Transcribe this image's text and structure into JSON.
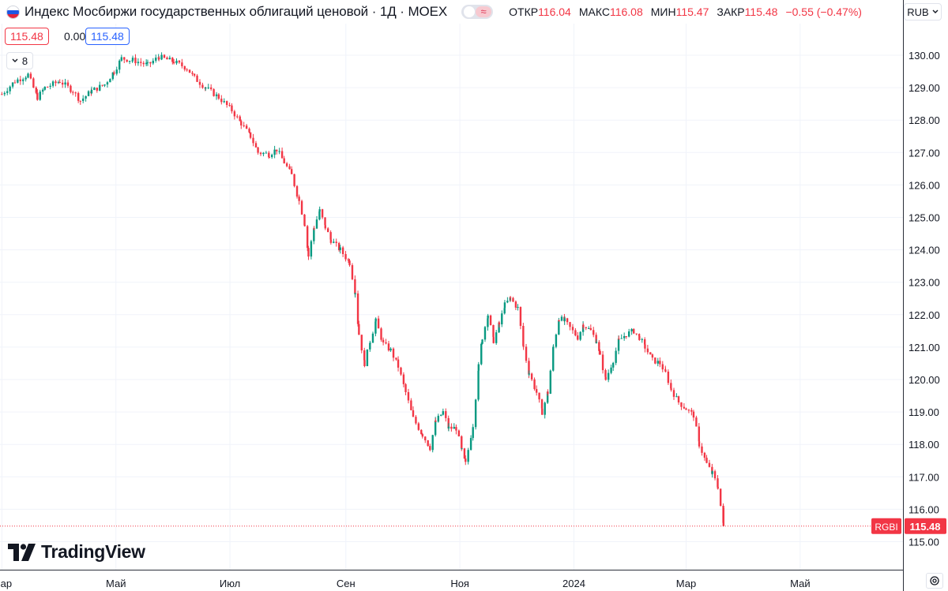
{
  "header": {
    "title": "Индекс Мосбиржи государственных облигаций ценовой · 1Д · MOEX",
    "ohlc": {
      "open_label": "ОТКР",
      "open": "116.04",
      "high_label": "МАКС",
      "high": "116.08",
      "low_label": "МИН",
      "low": "115.47",
      "close_label": "ЗАКР",
      "close": "115.48",
      "change": "−0.55 (−0.47%)"
    },
    "compare_toggle_glyph": "≈",
    "bid_price": "115.48",
    "spread": "0.00",
    "ask_price": "115.48",
    "indicators_count": "8",
    "currency": "RUB"
  },
  "brand": {
    "logo_text": "TradingView"
  },
  "colors": {
    "up": "#089981",
    "down": "#f23645",
    "grid": "#f0f3fa",
    "text": "#131722",
    "ask": "#2962ff"
  },
  "icons": [
    "russia-flag-icon",
    "compare-toggle-icon",
    "chevron-down-icon",
    "tradingview-logo-icon",
    "settings-icon"
  ],
  "chart_data": {
    "type": "candlestick",
    "symbol": "RGBI",
    "last_price": 115.48,
    "ylim": [
      114.5,
      130.3
    ],
    "y_ticks": [
      115,
      116,
      117,
      118,
      119,
      120,
      121,
      122,
      123,
      124,
      125,
      126,
      127,
      128,
      129,
      130
    ],
    "x_ticks": [
      {
        "label": "Мар",
        "date": "2023-03-01"
      },
      {
        "label": "Май",
        "date": "2023-05-01"
      },
      {
        "label": "Июл",
        "date": "2023-07-01"
      },
      {
        "label": "Сен",
        "date": "2023-09-01"
      },
      {
        "label": "Ноя",
        "date": "2023-11-01"
      },
      {
        "label": "2024",
        "date": "2024-01-01"
      },
      {
        "label": "Мар",
        "date": "2024-03-01"
      },
      {
        "label": "Май",
        "date": "2024-05-01"
      }
    ],
    "xlim": [
      "2023-02-28",
      "2024-06-25"
    ],
    "closes": [
      {
        "date": "2023-03-01",
        "close": 128.8
      },
      {
        "date": "2023-03-08",
        "close": 129.2
      },
      {
        "date": "2023-03-15",
        "close": 129.4
      },
      {
        "date": "2023-03-20",
        "close": 128.7
      },
      {
        "date": "2023-03-24",
        "close": 129.0
      },
      {
        "date": "2023-04-01",
        "close": 129.2
      },
      {
        "date": "2023-04-08",
        "close": 128.9
      },
      {
        "date": "2023-04-12",
        "close": 128.6
      },
      {
        "date": "2023-04-18",
        "close": 128.9
      },
      {
        "date": "2023-04-25",
        "close": 129.1
      },
      {
        "date": "2023-04-30",
        "close": 129.5
      },
      {
        "date": "2023-05-04",
        "close": 129.9
      },
      {
        "date": "2023-05-10",
        "close": 129.85
      },
      {
        "date": "2023-05-18",
        "close": 129.7
      },
      {
        "date": "2023-05-24",
        "close": 129.95
      },
      {
        "date": "2023-06-01",
        "close": 129.8
      },
      {
        "date": "2023-06-08",
        "close": 129.6
      },
      {
        "date": "2023-06-12",
        "close": 129.3
      },
      {
        "date": "2023-06-18",
        "close": 129.0
      },
      {
        "date": "2023-06-25",
        "close": 128.7
      },
      {
        "date": "2023-07-02",
        "close": 128.3
      },
      {
        "date": "2023-07-07",
        "close": 127.9
      },
      {
        "date": "2023-07-12",
        "close": 127.5
      },
      {
        "date": "2023-07-16",
        "close": 127.0
      },
      {
        "date": "2023-07-22",
        "close": 126.95
      },
      {
        "date": "2023-07-26",
        "close": 127.1
      },
      {
        "date": "2023-07-30",
        "close": 126.7
      },
      {
        "date": "2023-08-03",
        "close": 126.3
      },
      {
        "date": "2023-08-07",
        "close": 125.5
      },
      {
        "date": "2023-08-10",
        "close": 124.8
      },
      {
        "date": "2023-08-12",
        "close": 123.8
      },
      {
        "date": "2023-08-15",
        "close": 124.7
      },
      {
        "date": "2023-08-18",
        "close": 125.2
      },
      {
        "date": "2023-08-21",
        "close": 124.7
      },
      {
        "date": "2023-08-24",
        "close": 124.3
      },
      {
        "date": "2023-08-29",
        "close": 124.0
      },
      {
        "date": "2023-09-03",
        "close": 123.6
      },
      {
        "date": "2023-09-06",
        "close": 122.7
      },
      {
        "date": "2023-09-08",
        "close": 121.4
      },
      {
        "date": "2023-09-11",
        "close": 120.5
      },
      {
        "date": "2023-09-14",
        "close": 121.2
      },
      {
        "date": "2023-09-17",
        "close": 121.8
      },
      {
        "date": "2023-09-21",
        "close": 121.1
      },
      {
        "date": "2023-09-25",
        "close": 120.9
      },
      {
        "date": "2023-09-29",
        "close": 120.4
      },
      {
        "date": "2023-10-03",
        "close": 119.6
      },
      {
        "date": "2023-10-07",
        "close": 118.8
      },
      {
        "date": "2023-10-12",
        "close": 118.3
      },
      {
        "date": "2023-10-16",
        "close": 117.9
      },
      {
        "date": "2023-10-19",
        "close": 118.7
      },
      {
        "date": "2023-10-23",
        "close": 119.0
      },
      {
        "date": "2023-10-26",
        "close": 118.5
      },
      {
        "date": "2023-10-30",
        "close": 118.5
      },
      {
        "date": "2023-11-02",
        "close": 117.8
      },
      {
        "date": "2023-11-04",
        "close": 117.4
      },
      {
        "date": "2023-11-08",
        "close": 118.6
      },
      {
        "date": "2023-11-11",
        "close": 120.4
      },
      {
        "date": "2023-11-13",
        "close": 121.3
      },
      {
        "date": "2023-11-16",
        "close": 122.0
      },
      {
        "date": "2023-11-19",
        "close": 121.2
      },
      {
        "date": "2023-11-22",
        "close": 121.7
      },
      {
        "date": "2023-11-25",
        "close": 122.3
      },
      {
        "date": "2023-11-28",
        "close": 122.5
      },
      {
        "date": "2023-12-02",
        "close": 122.2
      },
      {
        "date": "2023-12-05",
        "close": 121.0
      },
      {
        "date": "2023-12-08",
        "close": 120.2
      },
      {
        "date": "2023-12-12",
        "close": 119.6
      },
      {
        "date": "2023-12-15",
        "close": 119.0
      },
      {
        "date": "2023-12-18",
        "close": 119.6
      },
      {
        "date": "2023-12-21",
        "close": 121.0
      },
      {
        "date": "2023-12-24",
        "close": 121.9
      },
      {
        "date": "2023-12-27",
        "close": 121.8
      },
      {
        "date": "2024-01-03",
        "close": 121.3
      },
      {
        "date": "2024-01-06",
        "close": 121.7
      },
      {
        "date": "2024-01-10",
        "close": 121.5
      },
      {
        "date": "2024-01-13",
        "close": 121.2
      },
      {
        "date": "2024-01-15",
        "close": 120.7
      },
      {
        "date": "2024-01-18",
        "close": 120.0
      },
      {
        "date": "2024-01-22",
        "close": 120.6
      },
      {
        "date": "2024-01-25",
        "close": 121.2
      },
      {
        "date": "2024-01-29",
        "close": 121.4
      },
      {
        "date": "2024-02-02",
        "close": 121.5
      },
      {
        "date": "2024-02-05",
        "close": 121.3
      },
      {
        "date": "2024-02-08",
        "close": 121.0
      },
      {
        "date": "2024-02-12",
        "close": 120.6
      },
      {
        "date": "2024-02-16",
        "close": 120.5
      },
      {
        "date": "2024-02-19",
        "close": 120.2
      },
      {
        "date": "2024-02-22",
        "close": 119.7
      },
      {
        "date": "2024-02-26",
        "close": 119.3
      },
      {
        "date": "2024-03-01",
        "close": 119.1
      },
      {
        "date": "2024-03-05",
        "close": 118.9
      },
      {
        "date": "2024-03-08",
        "close": 118.0
      },
      {
        "date": "2024-03-12",
        "close": 117.4
      },
      {
        "date": "2024-03-15",
        "close": 117.1
      },
      {
        "date": "2024-03-18",
        "close": 116.7
      },
      {
        "date": "2024-03-21",
        "close": 115.48
      }
    ]
  }
}
